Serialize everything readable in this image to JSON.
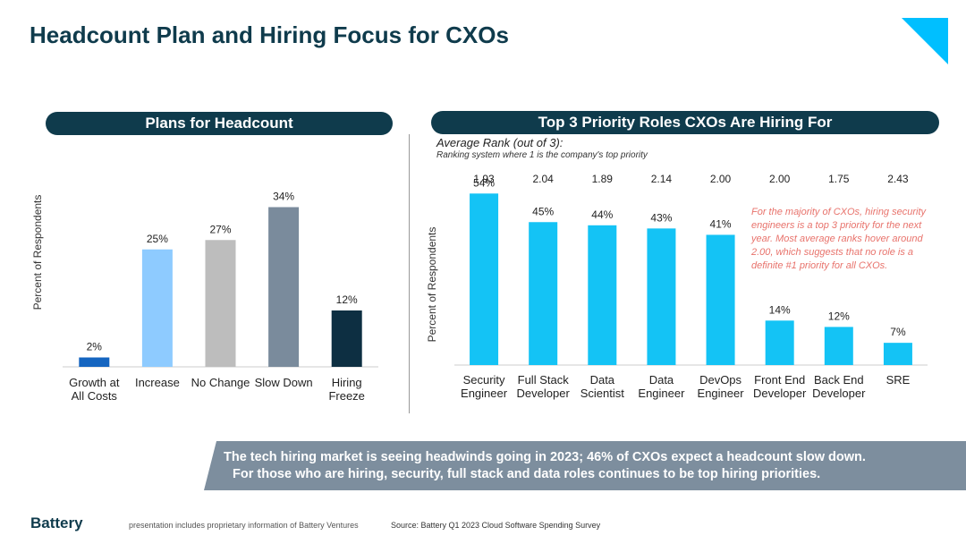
{
  "page_title": "Headcount Plan and Hiring Focus for CXOs",
  "left_panel": {
    "header": "Plans for Headcount"
  },
  "right_panel": {
    "header": "Top 3 Priority Roles CXOs Are Hiring For",
    "rank_title": "Average Rank (out of 3):",
    "rank_subtitle": "Ranking system where 1 is the company's top priority",
    "annotation": "For the majority of CXOs, hiring security engineers is a top 3 priority for the next year. Most average ranks hover around 2.00, which suggests that no role is a definite #1 priority for all CXOs."
  },
  "banner": {
    "line1": "The tech hiring market is seeing headwinds going in 2023; 46% of CXOs expect a headcount slow down.",
    "line2": "For those who are hiring, security, full stack and data roles continues to be top hiring priorities."
  },
  "footer": {
    "logo": "Battery",
    "disclaimer": "presentation includes proprietary information of Battery Ventures",
    "source": "Source: Battery Q1 2023 Cloud Software Spending Survey"
  },
  "chart_data": [
    {
      "type": "bar",
      "title": "Plans for Headcount",
      "ylabel": "Percent of Respondents",
      "ylim": [
        0,
        40
      ],
      "categories": [
        [
          "Growth at",
          "All Costs"
        ],
        [
          "Increase"
        ],
        [
          "No Change"
        ],
        [
          "Slow Down"
        ],
        [
          "Hiring",
          "Freeze"
        ]
      ],
      "values": [
        2,
        25,
        27,
        34,
        12
      ],
      "value_labels": [
        "2%",
        "25%",
        "27%",
        "34%",
        "12%"
      ],
      "colors": [
        "#1565c0",
        "#8ecbff",
        "#bdbdbd",
        "#7a8b9c",
        "#0d2f42"
      ]
    },
    {
      "type": "bar",
      "title": "Top 3 Priority Roles CXOs Are Hiring For",
      "ylabel": "Percent of Respondents",
      "ylim": [
        0,
        60
      ],
      "categories": [
        [
          "Security",
          "Engineer"
        ],
        [
          "Full Stack",
          "Developer"
        ],
        [
          "Data",
          "Scientist"
        ],
        [
          "Data",
          "Engineer"
        ],
        [
          "DevOps",
          "Engineer"
        ],
        [
          "Front End",
          "Developer"
        ],
        [
          "Back End",
          "Developer"
        ],
        [
          "SRE"
        ]
      ],
      "values": [
        54,
        45,
        44,
        43,
        41,
        14,
        12,
        7
      ],
      "value_labels": [
        "54%",
        "45%",
        "44%",
        "43%",
        "41%",
        "14%",
        "12%",
        "7%"
      ],
      "average_rank": [
        "1.93",
        "2.04",
        "1.89",
        "2.14",
        "2.00",
        "2.00",
        "1.75",
        "2.43"
      ],
      "color": "#14c3f5"
    }
  ]
}
